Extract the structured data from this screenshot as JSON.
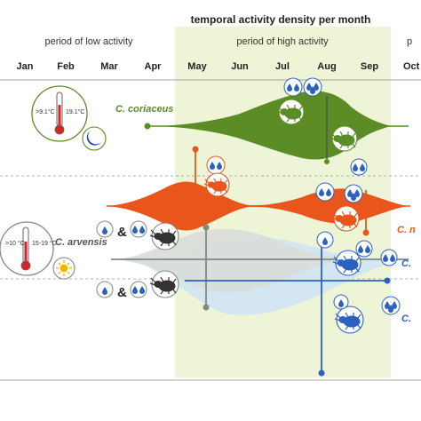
{
  "header": {
    "title": "temporal activity density per month",
    "low_period": "period of low activity",
    "high_period": "period of high activity",
    "cut_period": "p"
  },
  "months": [
    "Jan",
    "Feb",
    "Mar",
    "Apr",
    "May",
    "Jun",
    "Jul",
    "Aug",
    "Sep",
    "Oct"
  ],
  "species": {
    "coriaceus": {
      "name": "C. coriaceus",
      "color": "#5b8c25"
    },
    "orange": {
      "name": "C. n",
      "color": "#e8561c"
    },
    "arvensis": {
      "name": "C. arvensis",
      "color": "#7f8a80"
    },
    "blue": {
      "name": "C.",
      "name2": "C.",
      "color": "#2b62c2"
    }
  },
  "climate": {
    "coriaceus_low": ">9.1°C",
    "coriaceus_high": "19.1°C",
    "arvensis_low": ">10 °C",
    "arvensis_high": "15-19 °C"
  },
  "glyphs": {
    "ampersand": "&"
  },
  "colors": {
    "high_band": "#eef5d6",
    "green": "#5b8c25",
    "orange": "#e8561c",
    "gray": "#8a8f8a",
    "blue": "#2b62c2",
    "light_blue": "#cfe4f4",
    "light_gray": "#d8ddd8"
  },
  "icons": {
    "thermometer": "thermometer-icon",
    "moon": "moon-icon",
    "sun": "sun-icon",
    "water_drops": "water-drops-icon",
    "beetle": "beetle-icon"
  }
}
